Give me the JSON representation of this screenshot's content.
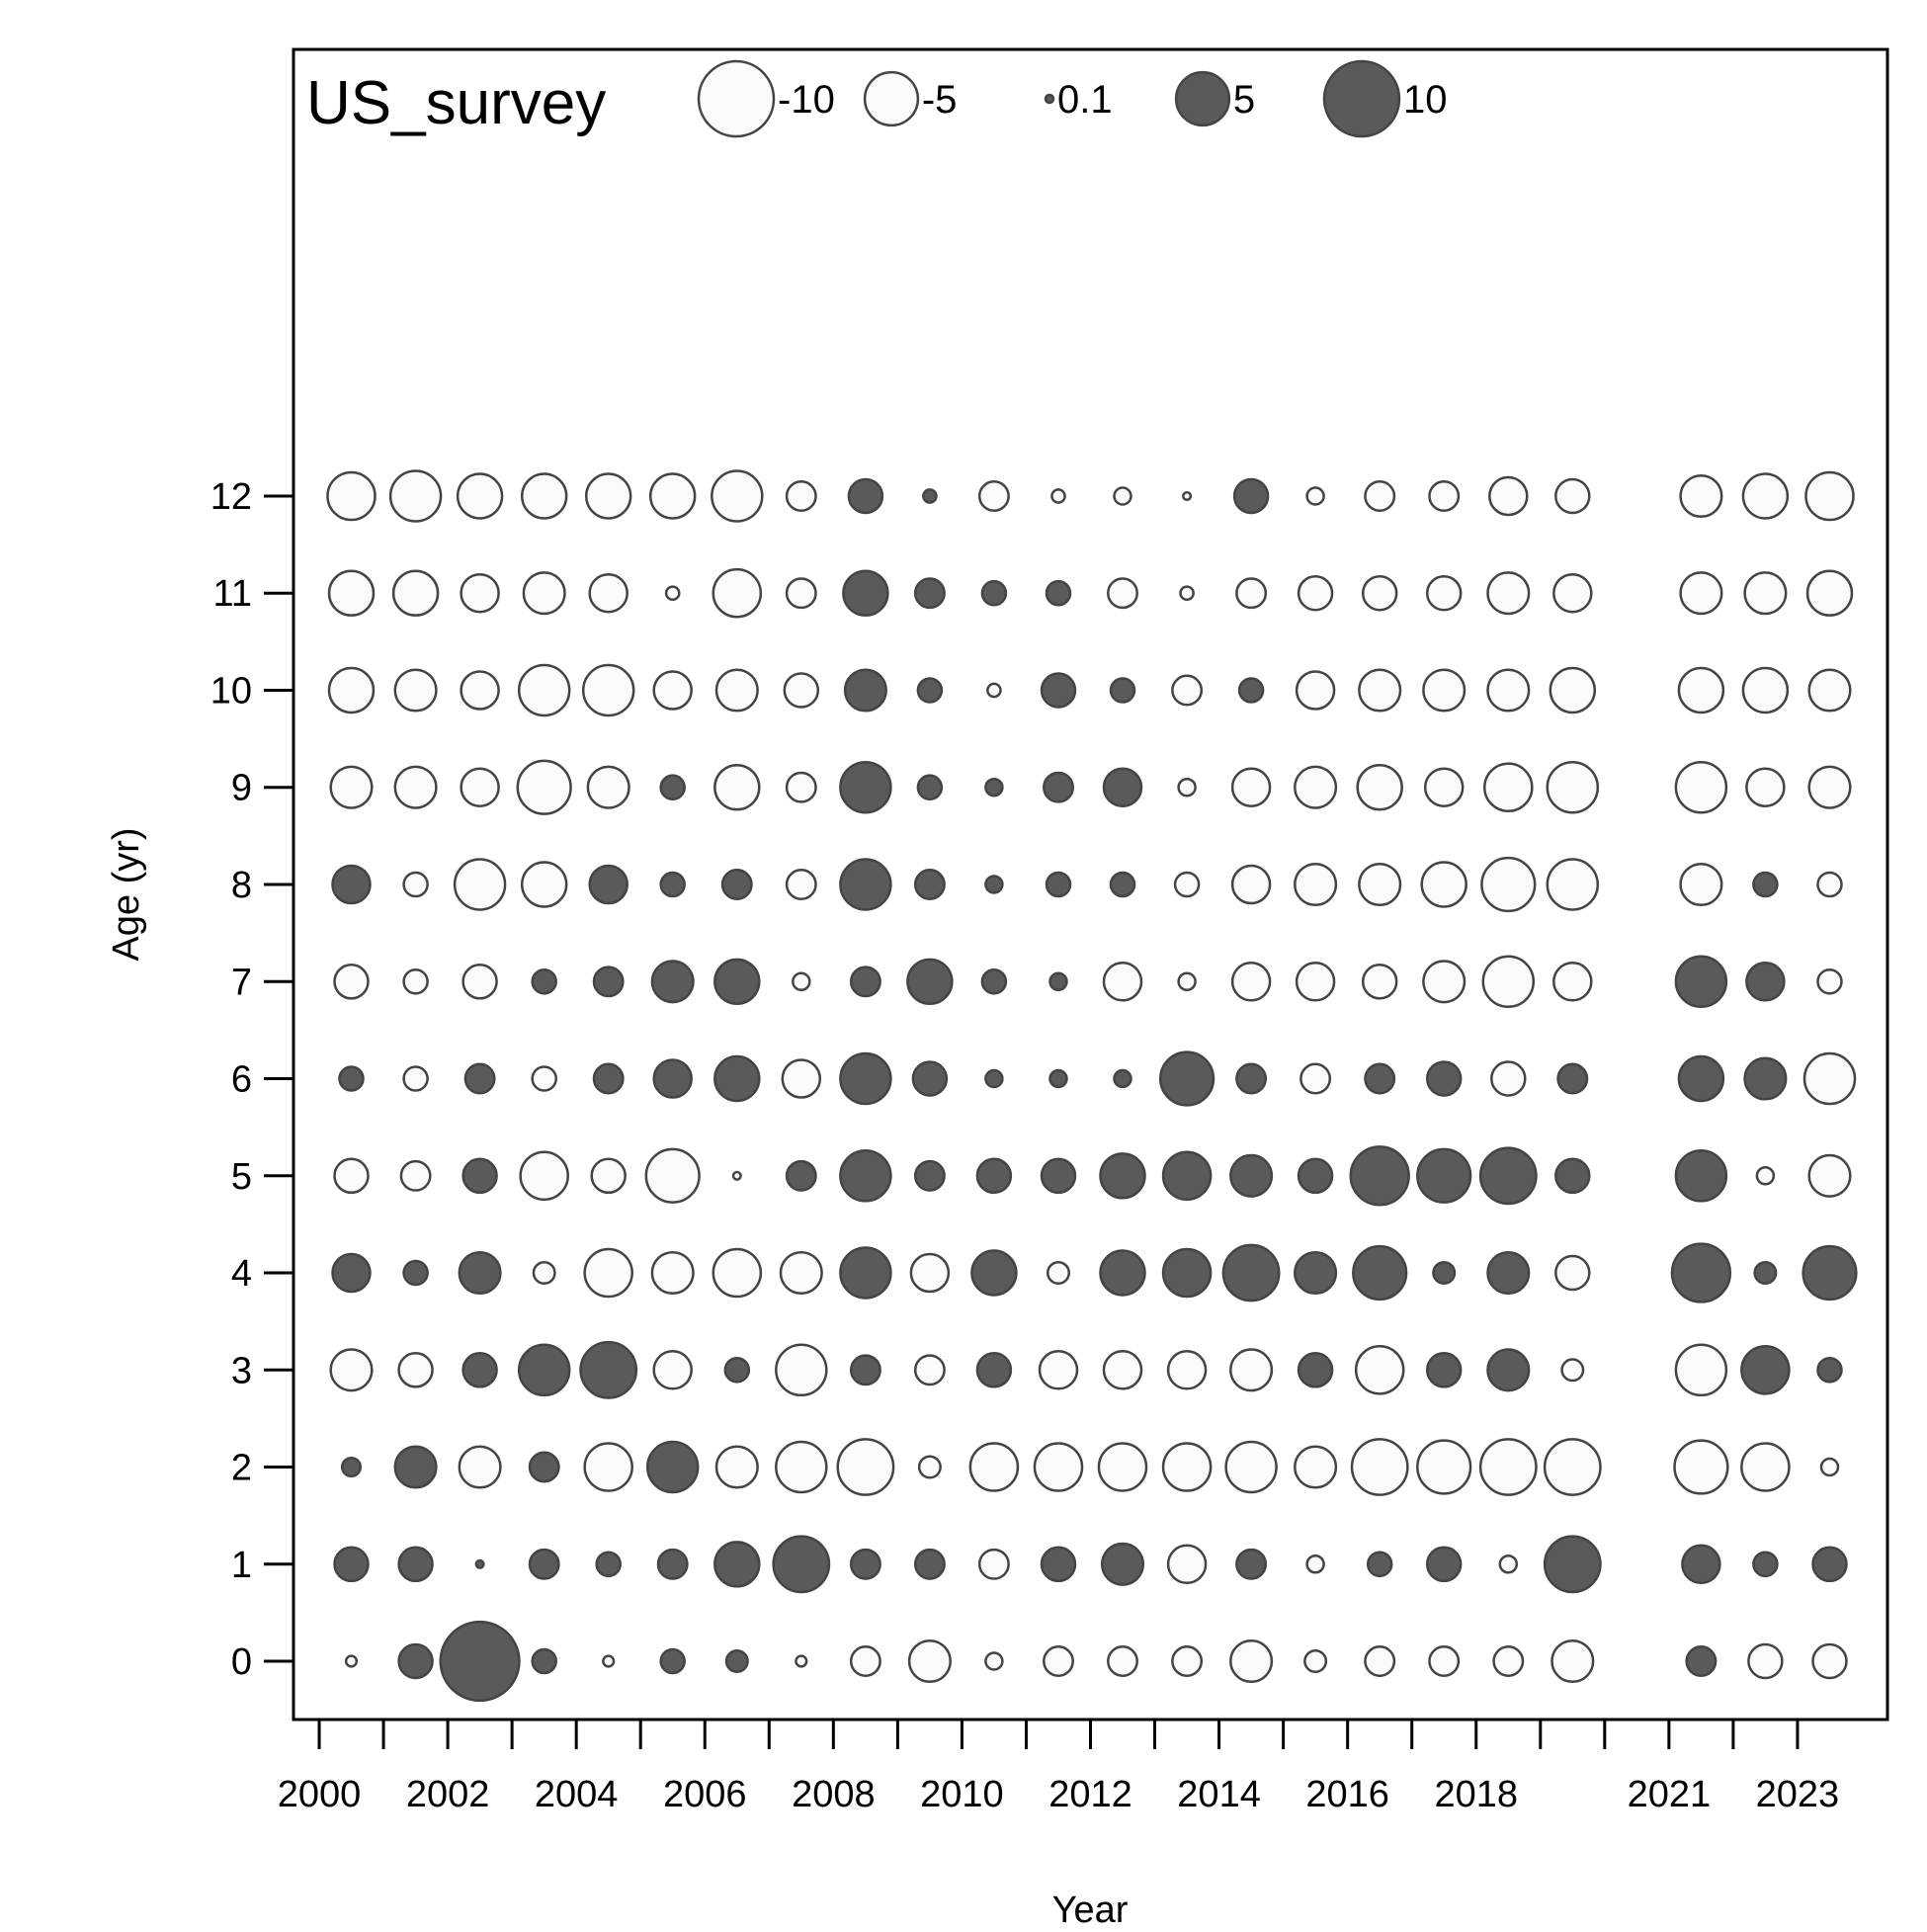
{
  "chart_data": {
    "type": "scatter",
    "subtype": "bubble",
    "title": "US_survey",
    "xlabel": "Year",
    "ylabel": "Age (yr)",
    "xlim": [
      1999.6,
      2024.4
    ],
    "ylim": [
      -0.6,
      16.6
    ],
    "x_ticks": [
      2000,
      2001,
      2002,
      2003,
      2004,
      2005,
      2006,
      2007,
      2008,
      2009,
      2010,
      2011,
      2012,
      2013,
      2014,
      2015,
      2016,
      2017,
      2018,
      2019,
      2020,
      2021,
      2022,
      2023
    ],
    "x_tick_labels": [
      {
        "x": 2000,
        "label": "2000"
      },
      {
        "x": 2002,
        "label": "2002"
      },
      {
        "x": 2004,
        "label": "2004"
      },
      {
        "x": 2006,
        "label": "2006"
      },
      {
        "x": 2008,
        "label": "2008"
      },
      {
        "x": 2010,
        "label": "2010"
      },
      {
        "x": 2012,
        "label": "2012"
      },
      {
        "x": 2014,
        "label": "2014"
      },
      {
        "x": 2016,
        "label": "2016"
      },
      {
        "x": 2018,
        "label": "2018"
      },
      {
        "x": 2021,
        "label": "2021"
      },
      {
        "x": 2023,
        "label": "2023"
      }
    ],
    "y_ticks": [
      0,
      1,
      2,
      3,
      4,
      5,
      6,
      7,
      8,
      9,
      10,
      11,
      12
    ],
    "y_tick_labels": [
      "0",
      "1",
      "2",
      "3",
      "4",
      "5",
      "6",
      "7",
      "8",
      "9",
      "10",
      "11",
      "12"
    ],
    "grid": false,
    "legend": {
      "placement": "top",
      "entries": [
        {
          "label": "-10",
          "value": -10
        },
        {
          "label": "-5",
          "value": -5
        },
        {
          "label": "0.1",
          "value": 0.1
        },
        {
          "label": "5",
          "value": 5
        },
        {
          "label": "10",
          "value": 10
        }
      ]
    },
    "colors": {
      "positive_fill": "#5a5a5a",
      "negative_fill": "#fafafa",
      "stroke": "#444444"
    },
    "years": [
      2000.5,
      2001.5,
      2002.5,
      2003.5,
      2004.5,
      2005.5,
      2006.5,
      2007.5,
      2008.5,
      2009.5,
      2010.5,
      2011.5,
      2012.5,
      2013.5,
      2014.5,
      2015.5,
      2016.5,
      2017.5,
      2018.5,
      2019.5,
      2021.5,
      2022.5,
      2023.5
    ],
    "ages": [
      0,
      1,
      2,
      3,
      4,
      5,
      6,
      7,
      8,
      9,
      10,
      11,
      12
    ],
    "residuals": [
      [
        -0.2,
        2,
        0.6,
        -3,
        2.5,
        -2,
        1,
        -2,
        2.5,
        -3,
        -3.5,
        -3.5,
        -4
      ],
      [
        2,
        2,
        3,
        -2,
        1,
        -1.5,
        -1,
        -1,
        -1,
        -3,
        -3,
        -3.5,
        -4.5
      ],
      [
        11,
        0.1,
        -3,
        2,
        3,
        2,
        1.5,
        -2,
        -4.5,
        -2.5,
        -2.5,
        -2.5,
        -3.5
      ],
      [
        1,
        1.5,
        1.5,
        4.5,
        -0.8,
        -4,
        -1,
        1,
        -3.5,
        -5,
        -4.5,
        -3,
        -3.5
      ],
      [
        -0.2,
        1,
        -4,
        5.5,
        -4,
        -2,
        1.5,
        1.5,
        2.5,
        -3,
        -4.5,
        -2.5,
        -3.5
      ],
      [
        1,
        1.5,
        4.5,
        -2.5,
        -3,
        -5,
        2.5,
        3,
        1,
        1,
        -2.5,
        -0.3,
        -3.5
      ],
      [
        0.8,
        3.5,
        -3,
        1,
        -4,
        -0.1,
        3.5,
        3.5,
        1.5,
        -3.5,
        -3,
        -4,
        -4.5
      ],
      [
        -0.2,
        5.5,
        -4.5,
        -4.5,
        -3,
        1.5,
        -2.5,
        -0.5,
        -1.5,
        -1.5,
        -2,
        -1.5,
        -1.5
      ],
      [
        -1.5,
        1.5,
        -5.5,
        1.5,
        4.5,
        4.5,
        4.5,
        1.5,
        4.5,
        4.5,
        3,
        3.5,
        2
      ],
      [
        -3,
        1.5,
        -0.8,
        -1.5,
        -2.5,
        1.5,
        2,
        3.5,
        1.5,
        1,
        1,
        1.5,
        0.3
      ],
      [
        -0.5,
        -1.5,
        -4,
        2,
        3.5,
        2,
        0.5,
        1,
        0.5,
        0.5,
        -0.3,
        1,
        -1.5
      ],
      [
        -1.5,
        2,
        -4,
        -2.5,
        -0.8,
        2,
        0.5,
        0.5,
        1,
        1.5,
        2,
        1,
        -0.3
      ],
      [
        -1.5,
        3,
        -4,
        -2.5,
        3.5,
        3.5,
        0.5,
        -2.5,
        1,
        2.5,
        1,
        -1.5,
        -0.5
      ],
      [
        -1.5,
        -2.5,
        -4,
        -2.5,
        4,
        4,
        5,
        -0.5,
        -1,
        -0.5,
        -1.5,
        -0.3,
        -0.1
      ],
      [
        -3,
        1.5,
        -4.5,
        -3,
        5.5,
        3,
        1.5,
        -2.5,
        -2.5,
        -2.5,
        1,
        -1.5,
        2
      ],
      [
        -0.8,
        -0.5,
        -3,
        2,
        3,
        2,
        -1.5,
        -2.5,
        -3,
        -3,
        -2.5,
        -2,
        -0.5
      ],
      [
        -1.5,
        1,
        -5.5,
        -4,
        5,
        6,
        1.5,
        -2,
        -3,
        -3.5,
        -3,
        -2,
        -1.5
      ],
      [
        -1.5,
        2,
        -5,
        2,
        0.8,
        5,
        2,
        -3,
        -3.5,
        -2.5,
        -3,
        -2,
        -1.5
      ],
      [
        -1.5,
        -0.5,
        -5.5,
        3,
        3,
        5.5,
        -2,
        -4.5,
        -5,
        -4,
        -3,
        -3,
        -2.5
      ],
      [
        -3,
        5.5,
        -5.5,
        -0.8,
        -2,
        2,
        1.5,
        -2.5,
        -4.5,
        -4.5,
        -3.5,
        -2.5,
        -2
      ],
      [
        1.5,
        2.5,
        -5,
        -4.5,
        6,
        4.5,
        3.5,
        4.5,
        -3,
        -4.5,
        -3.5,
        -3,
        -3
      ],
      [
        -2,
        1,
        -4,
        4,
        0.8,
        -0.5,
        3,
        2.5,
        1,
        -2.5,
        -3.5,
        -3,
        -3.5
      ],
      [
        -2,
        2,
        -0.5,
        1,
        5,
        -3,
        -4.5,
        -1,
        -1,
        -3,
        -3,
        -3.5,
        -4
      ]
    ]
  }
}
